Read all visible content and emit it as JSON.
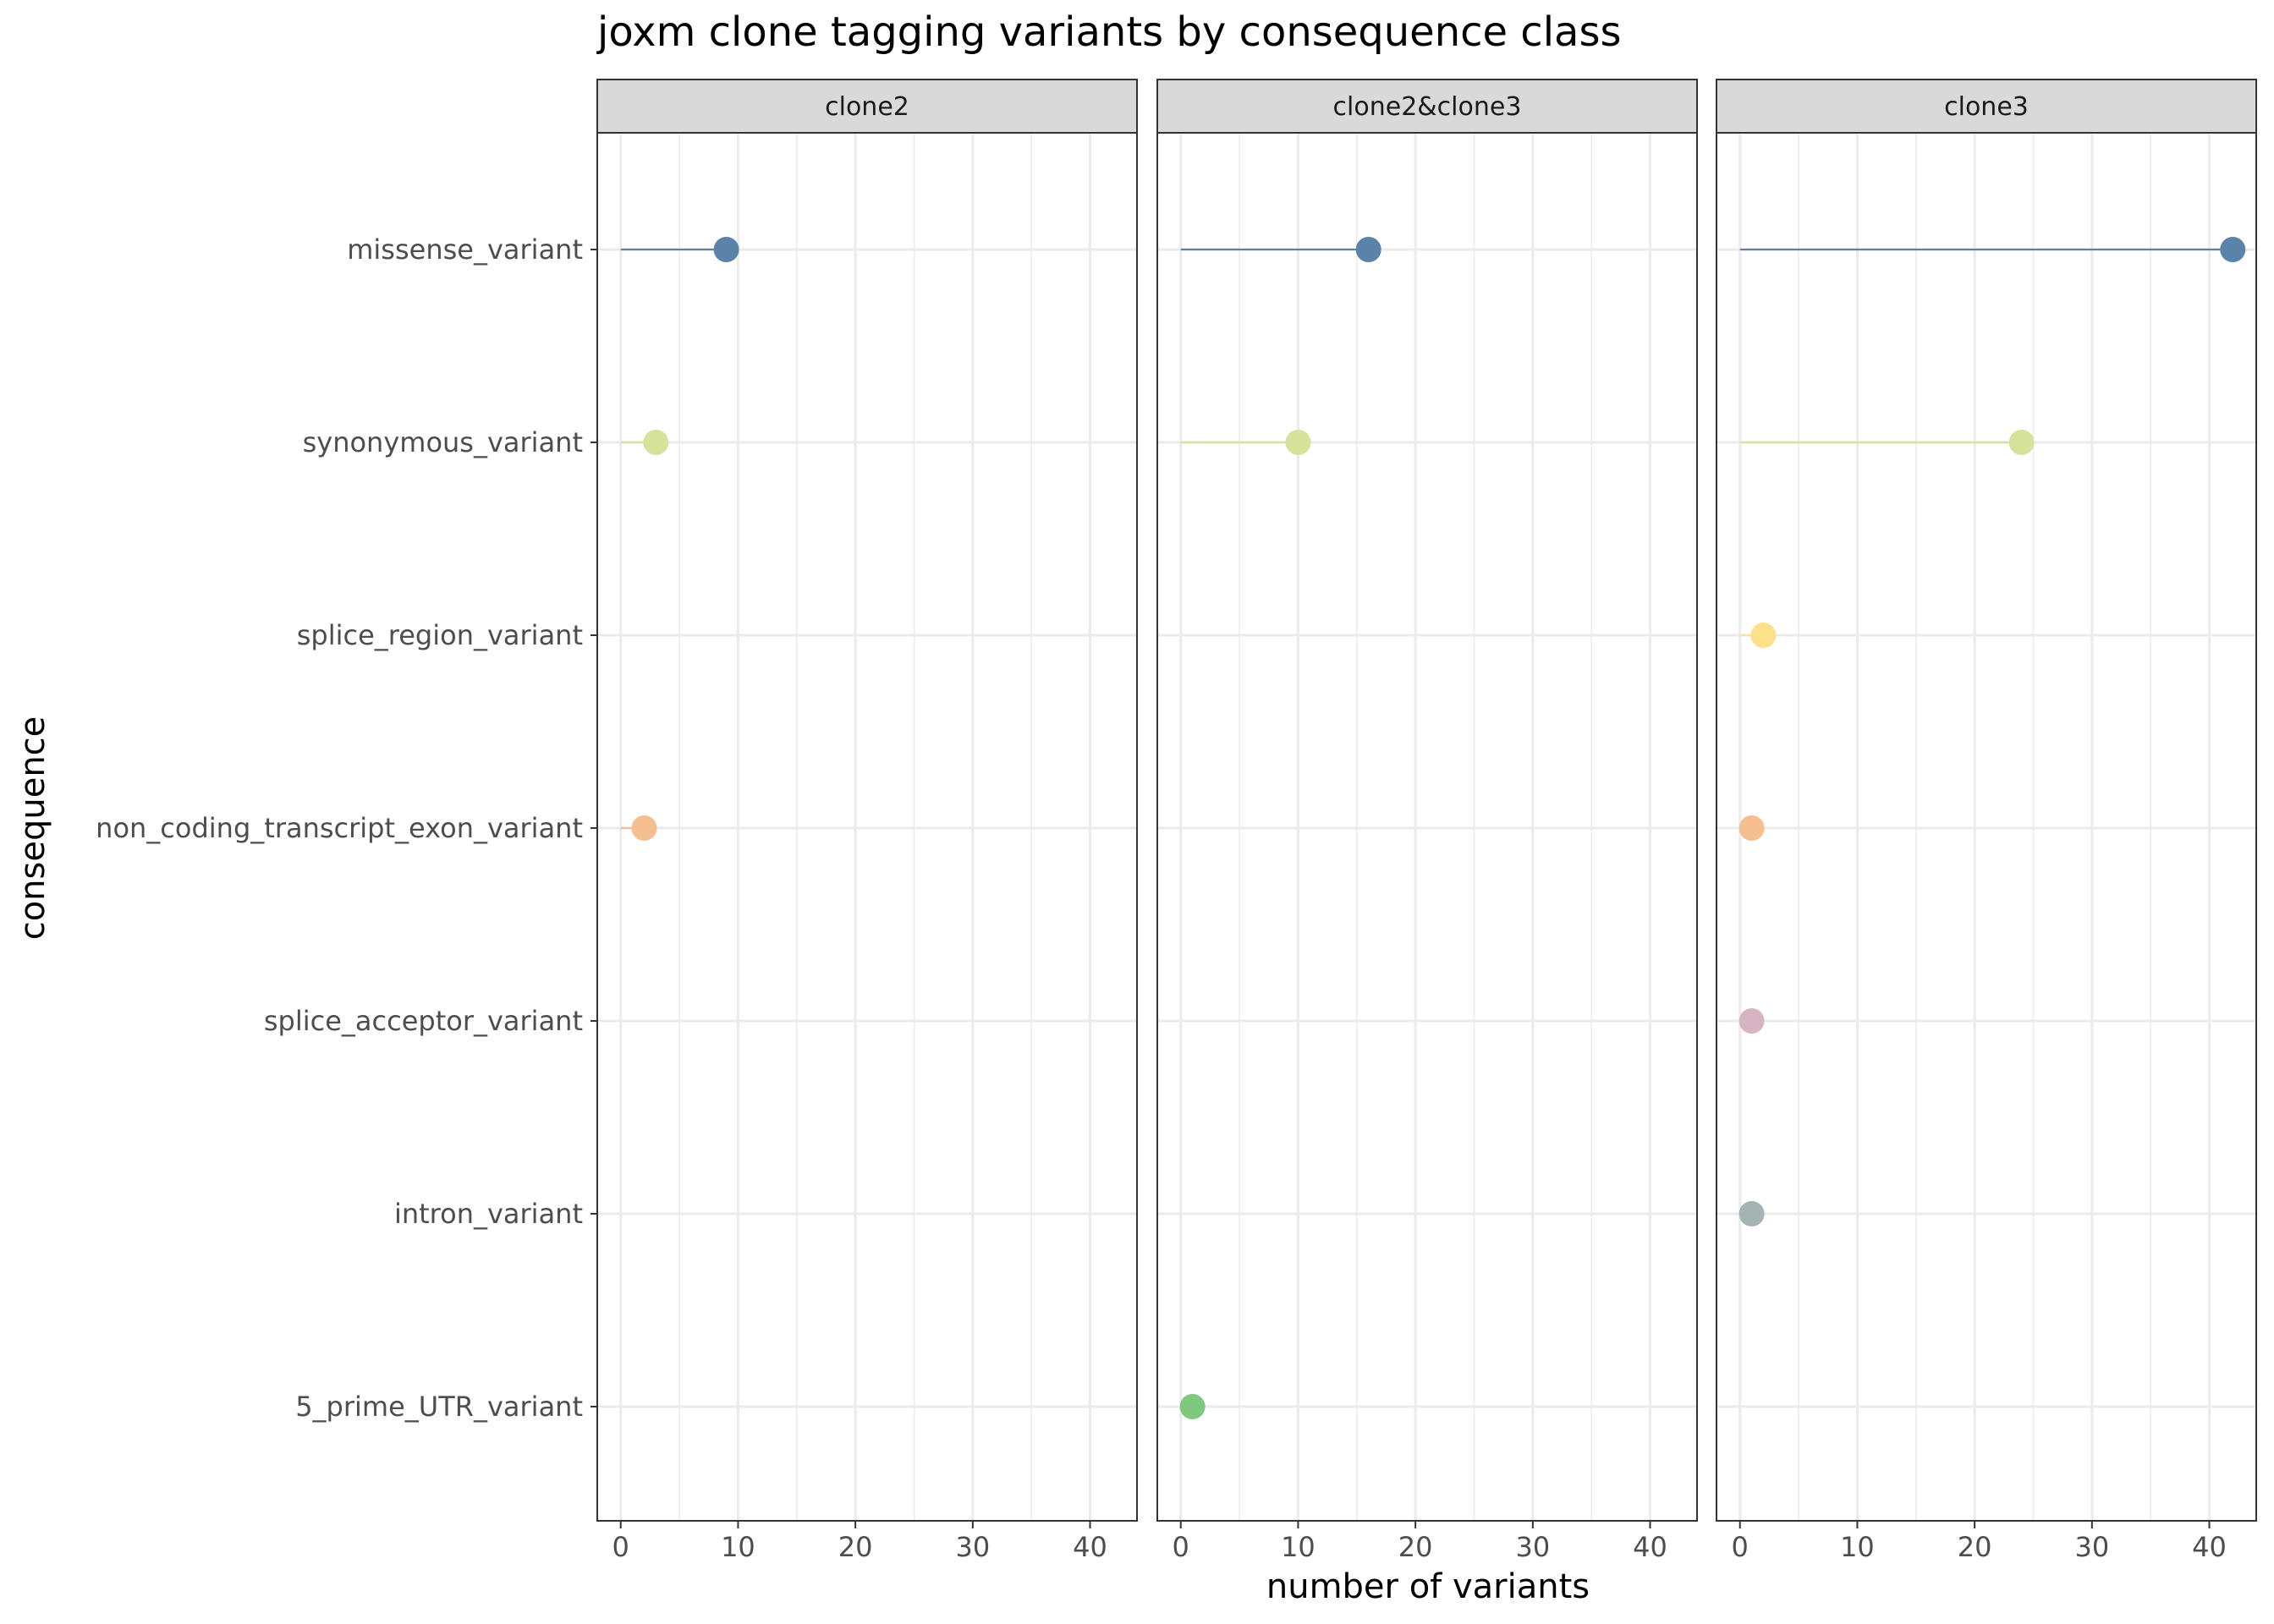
{
  "chart_data": {
    "type": "lollipop",
    "title": "joxm clone tagging variants by consequence class",
    "xlabel": "number of variants",
    "ylabel": "consequence",
    "xlim": [
      -2,
      44
    ],
    "xticks": [
      0,
      10,
      20,
      30,
      40
    ],
    "grid": true,
    "legend": "none",
    "categories": [
      "missense_variant",
      "synonymous_variant",
      "splice_region_variant",
      "non_coding_transcript_exon_variant",
      "splice_acceptor_variant",
      "intron_variant",
      "5_prime_UTR_variant"
    ],
    "colors": {
      "missense_variant": "#5b82a8",
      "synonymous_variant": "#d6e39a",
      "splice_region_variant": "#fde08a",
      "non_coding_transcript_exon_variant": "#f5bf8f",
      "splice_acceptor_variant": "#d7b4c2",
      "intron_variant": "#a3b4b2",
      "5_prime_UTR_variant": "#7fc97f"
    },
    "panels": [
      {
        "name": "clone2",
        "points": [
          {
            "category": "missense_variant",
            "value": 9
          },
          {
            "category": "synonymous_variant",
            "value": 3
          },
          {
            "category": "non_coding_transcript_exon_variant",
            "value": 2
          }
        ]
      },
      {
        "name": "clone2&clone3",
        "points": [
          {
            "category": "missense_variant",
            "value": 16
          },
          {
            "category": "synonymous_variant",
            "value": 10
          },
          {
            "category": "5_prime_UTR_variant",
            "value": 1
          }
        ]
      },
      {
        "name": "clone3",
        "points": [
          {
            "category": "missense_variant",
            "value": 42
          },
          {
            "category": "synonymous_variant",
            "value": 24
          },
          {
            "category": "splice_region_variant",
            "value": 2
          },
          {
            "category": "non_coding_transcript_exon_variant",
            "value": 1
          },
          {
            "category": "splice_acceptor_variant",
            "value": 1
          },
          {
            "category": "intron_variant",
            "value": 1
          }
        ]
      }
    ]
  }
}
